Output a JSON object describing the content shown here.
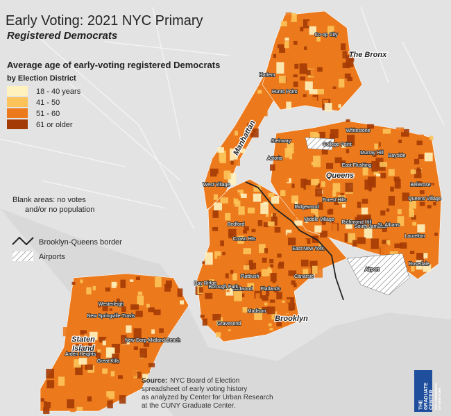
{
  "header": {
    "title": "Early Voting: 2021 NYC Primary",
    "subtitle": "Registered Democrats"
  },
  "legend": {
    "title": "Average age of early-voting registered Democrats",
    "subtitle": "by Election District",
    "items": [
      {
        "label": "18 - 40 years",
        "color": "#fff2bf"
      },
      {
        "label": "41 - 50",
        "color": "#fcc35a"
      },
      {
        "label": "51 - 60",
        "color": "#ec7a1c"
      },
      {
        "label": "61 or older",
        "color": "#a43b06"
      }
    ]
  },
  "notes": {
    "blank": [
      "Blank areas: no votes",
      "and/or no population"
    ],
    "border": "Brooklyn-Queens border",
    "airports": "Airports"
  },
  "source": {
    "label": "Source:",
    "lines": [
      "NYC Board of Election",
      "spreadsheet of early voting history",
      "as analyzed by Center for Urban Research",
      "at the CUNY Graduate Center."
    ]
  },
  "boroughs": [
    "The Bronx",
    "Manhattan",
    "Queens",
    "Brooklyn",
    "Staten Island"
  ],
  "places": [
    "Co-op City",
    "Hunts Point",
    "Harlem",
    "Astoria",
    "Steinway",
    "Whitestone",
    "College Point",
    "Murray Hill",
    "East Flushing",
    "Bayside",
    "Bellerose",
    "Queens Village",
    "Middle Village",
    "Forest Hills",
    "Ridgewood",
    "Richmond Hill",
    "South Jamaica",
    "St. Albans",
    "Laurelton",
    "Rosedale",
    "Crown Hts",
    "Bedford",
    "East New York",
    "Canarsie",
    "Flatbush",
    "Midwood",
    "Flatlands",
    "Bay Ridge",
    "Borough Park",
    "Gravesend",
    "Madison",
    "West Village",
    "Westerleigh",
    "New Springville-Travis",
    "New Dorp-Midland Beach",
    "Arden Heights",
    "Great Kills",
    "Airport"
  ],
  "logo": [
    "THE",
    "GRADUATE",
    "CENTER",
    "CITY UNIVERSITY",
    "OF NEW YORK"
  ]
}
